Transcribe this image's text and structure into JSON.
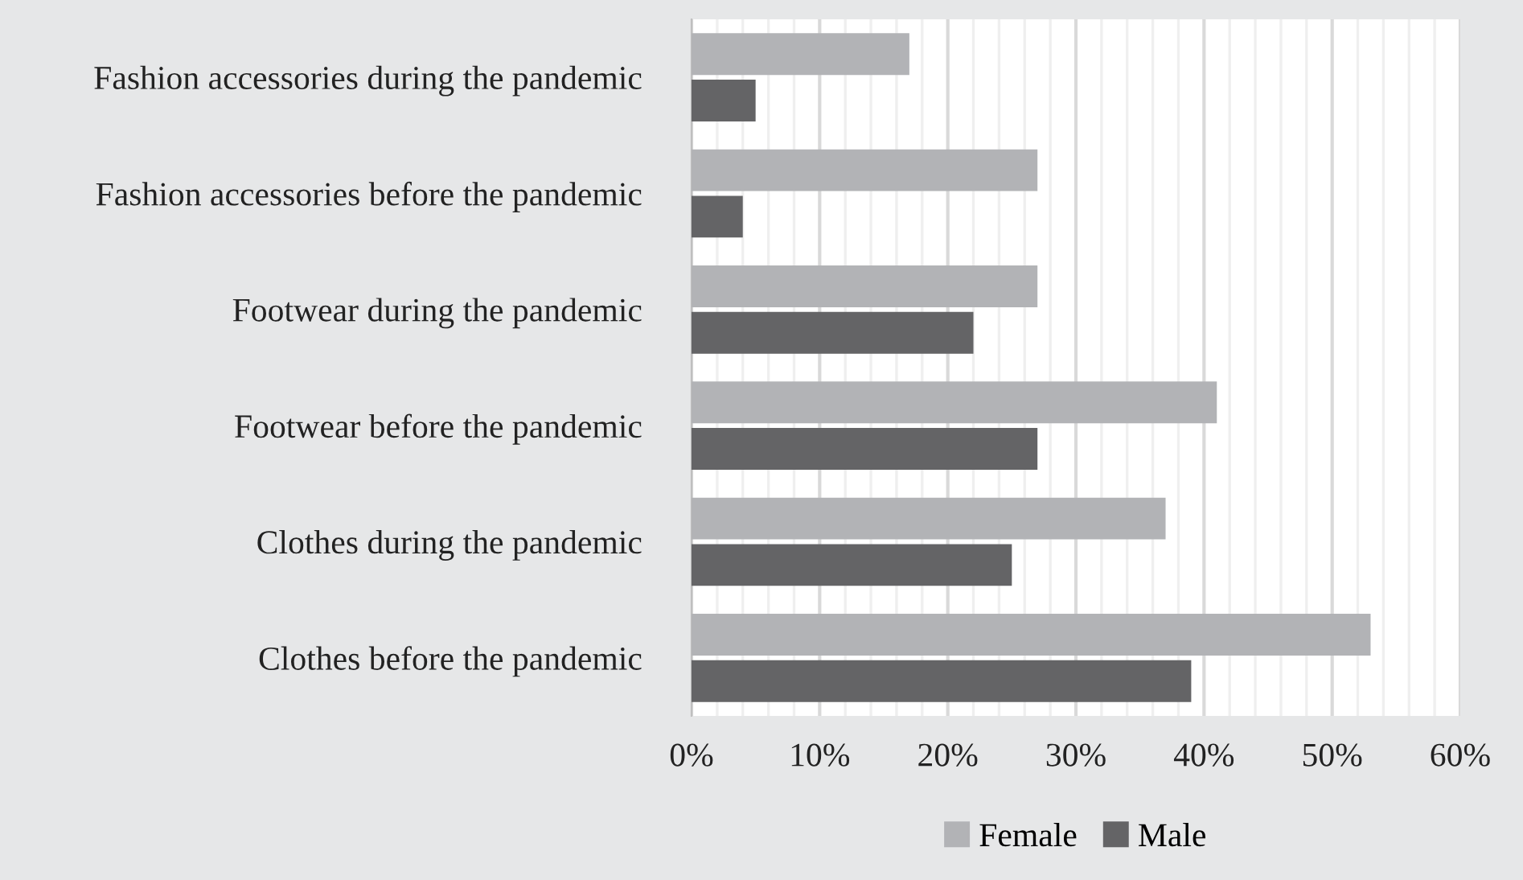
{
  "chart_data": {
    "type": "bar",
    "orientation": "horizontal",
    "categories": [
      "Fashion accessories during the pandemic",
      "Fashion accessories before the pandemic",
      "Footwear during the pandemic",
      "Footwear before the pandemic",
      "Clothes during the pandemic",
      "Clothes before the pandemic"
    ],
    "series": [
      {
        "name": "Female",
        "color": "#b2b3b6",
        "values": [
          17,
          27,
          27,
          41,
          37,
          53
        ]
      },
      {
        "name": "Male",
        "color": "#646466",
        "values": [
          5,
          4,
          22,
          27,
          25,
          39
        ]
      }
    ],
    "xlim": [
      0,
      60
    ],
    "xticks": [
      {
        "value": 0,
        "label": "0%"
      },
      {
        "value": 2,
        "label": null
      },
      {
        "value": 4,
        "label": null
      },
      {
        "value": 6,
        "label": null
      },
      {
        "value": 8,
        "label": null
      },
      {
        "value": 10,
        "label": "10%"
      },
      {
        "value": 12,
        "label": null
      },
      {
        "value": 14,
        "label": null
      },
      {
        "value": 16,
        "label": null
      },
      {
        "value": 18,
        "label": null
      },
      {
        "value": 20,
        "label": "20%"
      },
      {
        "value": 22,
        "label": null
      },
      {
        "value": 24,
        "label": null
      },
      {
        "value": 26,
        "label": null
      },
      {
        "value": 28,
        "label": null
      },
      {
        "value": 30,
        "label": "30%"
      },
      {
        "value": 32,
        "label": null
      },
      {
        "value": 34,
        "label": null
      },
      {
        "value": 36,
        "label": null
      },
      {
        "value": 38,
        "label": null
      },
      {
        "value": 40,
        "label": "40%"
      },
      {
        "value": 42,
        "label": null
      },
      {
        "value": 44,
        "label": null
      },
      {
        "value": 46,
        "label": null
      },
      {
        "value": 48,
        "label": null
      },
      {
        "value": 50,
        "label": "50%"
      },
      {
        "value": 52,
        "label": null
      },
      {
        "value": 54,
        "label": null
      },
      {
        "value": 56,
        "label": null
      },
      {
        "value": 58,
        "label": null
      },
      {
        "value": 60,
        "label": "60%"
      }
    ],
    "grid": "x",
    "legend": "bottom"
  }
}
